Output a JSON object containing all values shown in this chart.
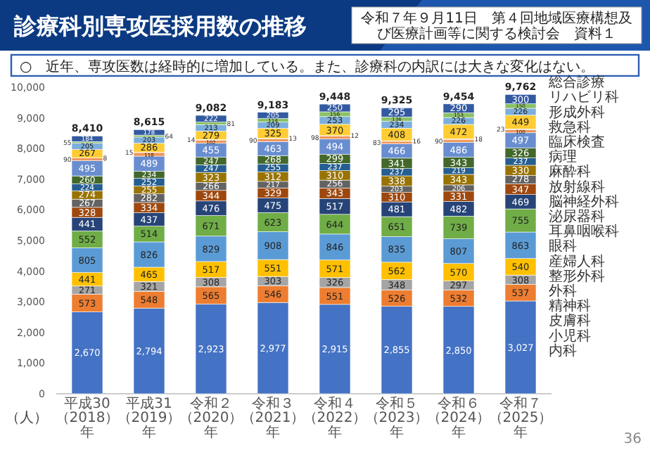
{
  "chart_data": {
    "type": "bar",
    "stacked": true,
    "title": "診療科別専攻医採用数の推移",
    "subtitle": "○　近年、専攻医数は経時的に増加している。また、診療科の内訳には大きな変化はない。",
    "annotations": [
      "令和７年９月11日　第４回地域医療構想及び医療計画等に関する検討会　資料１",
      "36"
    ],
    "ylabel": "（人）",
    "categories": [
      "平成30（2018）年",
      "平成31（2019）年",
      "令和２（2020）年",
      "令和３（2021）年",
      "令和４（2022）年",
      "令和５（2023）年",
      "令和６（2024）年",
      "令和７（2025）年"
    ],
    "ylim": [
      0,
      10000
    ],
    "yticks": [
      0,
      {
        "value": 1000,
        "label": "1,000"
      },
      {
        "value": 2000,
        "label": "2,000"
      },
      {
        "value": 3000,
        "label": "3,000"
      },
      {
        "value": 4000,
        "label": "4,000"
      },
      {
        "value": 5000,
        "label": "5,000"
      },
      {
        "value": 6000,
        "label": "6,000"
      },
      {
        "value": 7000,
        "label": "7,000"
      },
      {
        "value": 8000,
        "label": "8,000"
      },
      {
        "value": 9000,
        "label": "9,000"
      },
      {
        "value": 10000,
        "label": "10,000"
      }
    ],
    "grid": false,
    "legend": "right",
    "data_labels": true,
    "totals": [
      "8,410",
      "8,615",
      "9,082",
      "9,183",
      "9,448",
      "9,325",
      "9,454",
      "9,762"
    ],
    "series": [
      {
        "name": "内科",
        "color": "#4472c4",
        "values": [
          2670,
          2794,
          2923,
          2977,
          2915,
          2855,
          2850,
          3027
        ],
        "value_labels": [
          "2,670",
          "2,794",
          "2,923",
          "2,977",
          "2,915",
          "2,855",
          "2,850",
          "3,027"
        ]
      },
      {
        "name": "小児科",
        "color": "#ed7d31",
        "values": [
          573,
          548,
          565,
          546,
          551,
          526,
          532,
          537
        ]
      },
      {
        "name": "皮膚科",
        "color": "#a5a5a5",
        "values": [
          271,
          321,
          308,
          303,
          326,
          348,
          297,
          308
        ]
      },
      {
        "name": "精神科",
        "color": "#ffc000",
        "values": [
          441,
          465,
          517,
          551,
          571,
          562,
          570,
          540
        ]
      },
      {
        "name": "外科",
        "color": "#5b9bd5",
        "values": [
          805,
          826,
          829,
          908,
          846,
          835,
          807,
          863
        ]
      },
      {
        "name": "整形外科",
        "color": "#70ad47",
        "values": [
          552,
          514,
          671,
          623,
          644,
          651,
          739,
          755
        ]
      },
      {
        "name": "産婦人科",
        "color": "#264478",
        "values": [
          441,
          437,
          476,
          475,
          517,
          481,
          482,
          469
        ]
      },
      {
        "name": "眼科",
        "color": "#9e480e",
        "values": [
          328,
          334,
          344,
          329,
          343,
          310,
          331,
          347
        ]
      },
      {
        "name": "耳鼻咽喉科",
        "color": "#636363",
        "values": [
          267,
          282,
          266,
          217,
          256,
          203,
          206,
          278
        ]
      },
      {
        "name": "泌尿器科",
        "color": "#997300",
        "values": [
          274,
          255,
          323,
          312,
          310,
          338,
          343,
          330
        ]
      },
      {
        "name": "脳神経外科",
        "color": "#255e91",
        "values": [
          224,
          252,
          247,
          255,
          237,
          237,
          219,
          237
        ]
      },
      {
        "name": "放射線科",
        "color": "#43682b",
        "values": [
          260,
          234,
          247,
          268,
          299,
          341,
          343,
          326
        ]
      },
      {
        "name": "麻酔科",
        "color": "#698ed0",
        "values": [
          495,
          489,
          455,
          463,
          494,
          466,
          486,
          497
        ]
      },
      {
        "name": "病理",
        "color": "#f1975a",
        "values": [
          90,
          118,
          102,
          90,
          98,
          83,
          90,
          100
        ]
      },
      {
        "name": "臨床検査",
        "color": "#b7b7b7",
        "values": [
          8,
          15,
          14,
          13,
          12,
          16,
          18,
          23
        ]
      },
      {
        "name": "救急科",
        "color": "#ffcd33",
        "values": [
          267,
          286,
          279,
          325,
          370,
          408,
          472,
          449
        ]
      },
      {
        "name": "形成外科",
        "color": "#7cafdd",
        "values": [
          205,
          203,
          213,
          209,
          253,
          234,
          226,
          226
        ]
      },
      {
        "name": "リハビリ科",
        "color": "#8cc168",
        "values": [
          55,
          64,
          81,
          114,
          156,
          136,
          153,
          150
        ]
      },
      {
        "name": "総合診療",
        "color": "#335aa1",
        "values": [
          184,
          178,
          222,
          205,
          250,
          295,
          290,
          300
        ]
      }
    ]
  }
}
